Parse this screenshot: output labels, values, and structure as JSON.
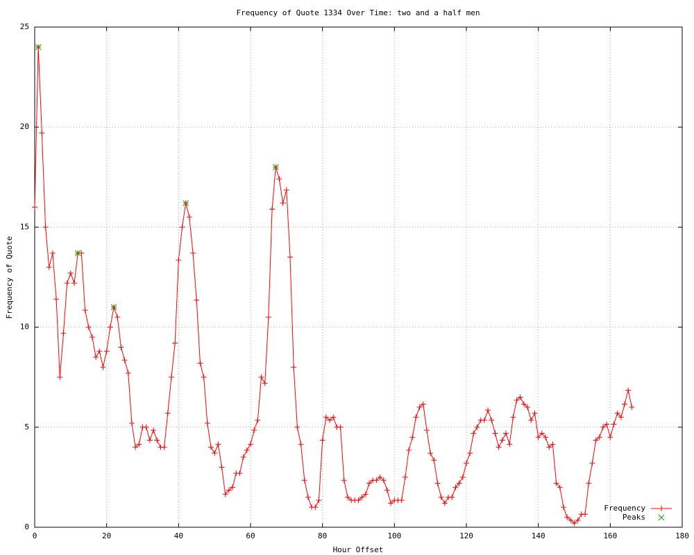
{
  "chart_data": {
    "type": "line",
    "title": "Frequency of Quote 1334 Over Time: two and a half men",
    "x_label": "Hour Offset",
    "y_label": "Frequency of Quote",
    "xlim": [
      0,
      180
    ],
    "xticks": [
      0,
      20,
      40,
      60,
      80,
      100,
      120,
      140,
      160,
      180
    ],
    "ylim": [
      0,
      25
    ],
    "yticks": [
      0,
      5,
      10,
      15,
      20,
      25
    ],
    "grid": true,
    "legend_position": "bottom-right",
    "series": [
      {
        "name": "Frequency",
        "color": "#ff0000",
        "marker": "plus",
        "x": [
          0,
          1,
          2,
          3,
          4,
          5,
          6,
          7,
          8,
          9,
          10,
          11,
          12,
          13,
          14,
          15,
          16,
          17,
          18,
          19,
          20,
          21,
          22,
          23,
          24,
          25,
          26,
          27,
          28,
          29,
          30,
          31,
          32,
          33,
          34,
          35,
          36,
          37,
          38,
          39,
          40,
          41,
          42,
          43,
          44,
          45,
          46,
          47,
          48,
          49,
          50,
          51,
          52,
          53,
          54,
          55,
          56,
          57,
          58,
          59,
          60,
          61,
          62,
          63,
          64,
          65,
          66,
          67,
          68,
          69,
          70,
          71,
          72,
          73,
          74,
          75,
          76,
          77,
          78,
          79,
          80,
          81,
          82,
          83,
          84,
          85,
          86,
          87,
          88,
          89,
          90,
          91,
          92,
          93,
          94,
          95,
          96,
          97,
          98,
          99,
          100,
          101,
          102,
          103,
          104,
          105,
          106,
          107,
          108,
          109,
          110,
          111,
          112,
          113,
          114,
          115,
          116,
          117,
          118,
          119,
          120,
          121,
          122,
          123,
          124,
          125,
          126,
          127,
          128,
          129,
          130,
          131,
          132,
          133,
          134,
          135,
          136,
          137,
          138,
          139,
          140,
          141,
          142,
          143,
          144,
          145,
          146,
          147,
          148,
          149,
          150,
          151,
          152,
          153,
          154,
          155,
          156,
          157,
          158,
          159,
          160,
          161,
          162,
          163,
          164,
          165,
          166
        ],
        "values": [
          16.0,
          24.0,
          19.7,
          15.0,
          13.0,
          13.7,
          11.4,
          7.5,
          9.7,
          12.2,
          12.7,
          12.2,
          13.7,
          13.7,
          10.85,
          10.0,
          9.5,
          8.5,
          8.8,
          8.0,
          8.8,
          10.0,
          11.0,
          10.5,
          9.0,
          8.35,
          7.7,
          5.2,
          4.0,
          4.15,
          5.0,
          5.0,
          4.35,
          4.85,
          4.35,
          4.0,
          4.0,
          5.7,
          7.5,
          9.2,
          13.35,
          15.0,
          16.2,
          15.5,
          13.7,
          11.35,
          8.2,
          7.5,
          5.2,
          4.0,
          3.7,
          4.15,
          3.0,
          1.65,
          1.85,
          2.0,
          2.7,
          2.7,
          3.5,
          3.85,
          4.15,
          4.85,
          5.35,
          7.5,
          7.2,
          10.5,
          15.9,
          18.0,
          17.4,
          16.2,
          16.85,
          13.5,
          8.0,
          5.0,
          4.15,
          2.35,
          1.5,
          1.0,
          1.0,
          1.35,
          4.35,
          5.5,
          5.35,
          5.5,
          5.0,
          5.0,
          2.35,
          1.5,
          1.35,
          1.35,
          1.35,
          1.5,
          1.65,
          2.2,
          2.35,
          2.35,
          2.5,
          2.35,
          1.85,
          1.2,
          1.35,
          1.35,
          1.35,
          2.5,
          3.85,
          4.5,
          5.5,
          6.0,
          6.15,
          4.85,
          3.7,
          3.35,
          2.2,
          1.5,
          1.2,
          1.5,
          1.5,
          2.0,
          2.2,
          2.5,
          3.2,
          3.7,
          4.7,
          5.0,
          5.35,
          5.35,
          5.85,
          5.35,
          4.7,
          4.0,
          4.35,
          4.7,
          4.15,
          5.5,
          6.35,
          6.5,
          6.15,
          6.0,
          5.35,
          5.7,
          4.5,
          4.7,
          4.5,
          4.0,
          4.15,
          2.2,
          2.0,
          1.0,
          0.5,
          0.35,
          0.2,
          0.35,
          0.65,
          0.65,
          2.2,
          3.2,
          4.35,
          4.5,
          5.0,
          5.15,
          4.5,
          5.15,
          5.7,
          5.5,
          6.15,
          6.85,
          6.0
        ]
      },
      {
        "name": "Peaks",
        "color": "#00a000",
        "marker": "cross",
        "x": [
          1,
          12,
          22,
          42,
          67
        ],
        "values": [
          24.0,
          13.7,
          11.0,
          16.2,
          18.0
        ]
      }
    ]
  }
}
